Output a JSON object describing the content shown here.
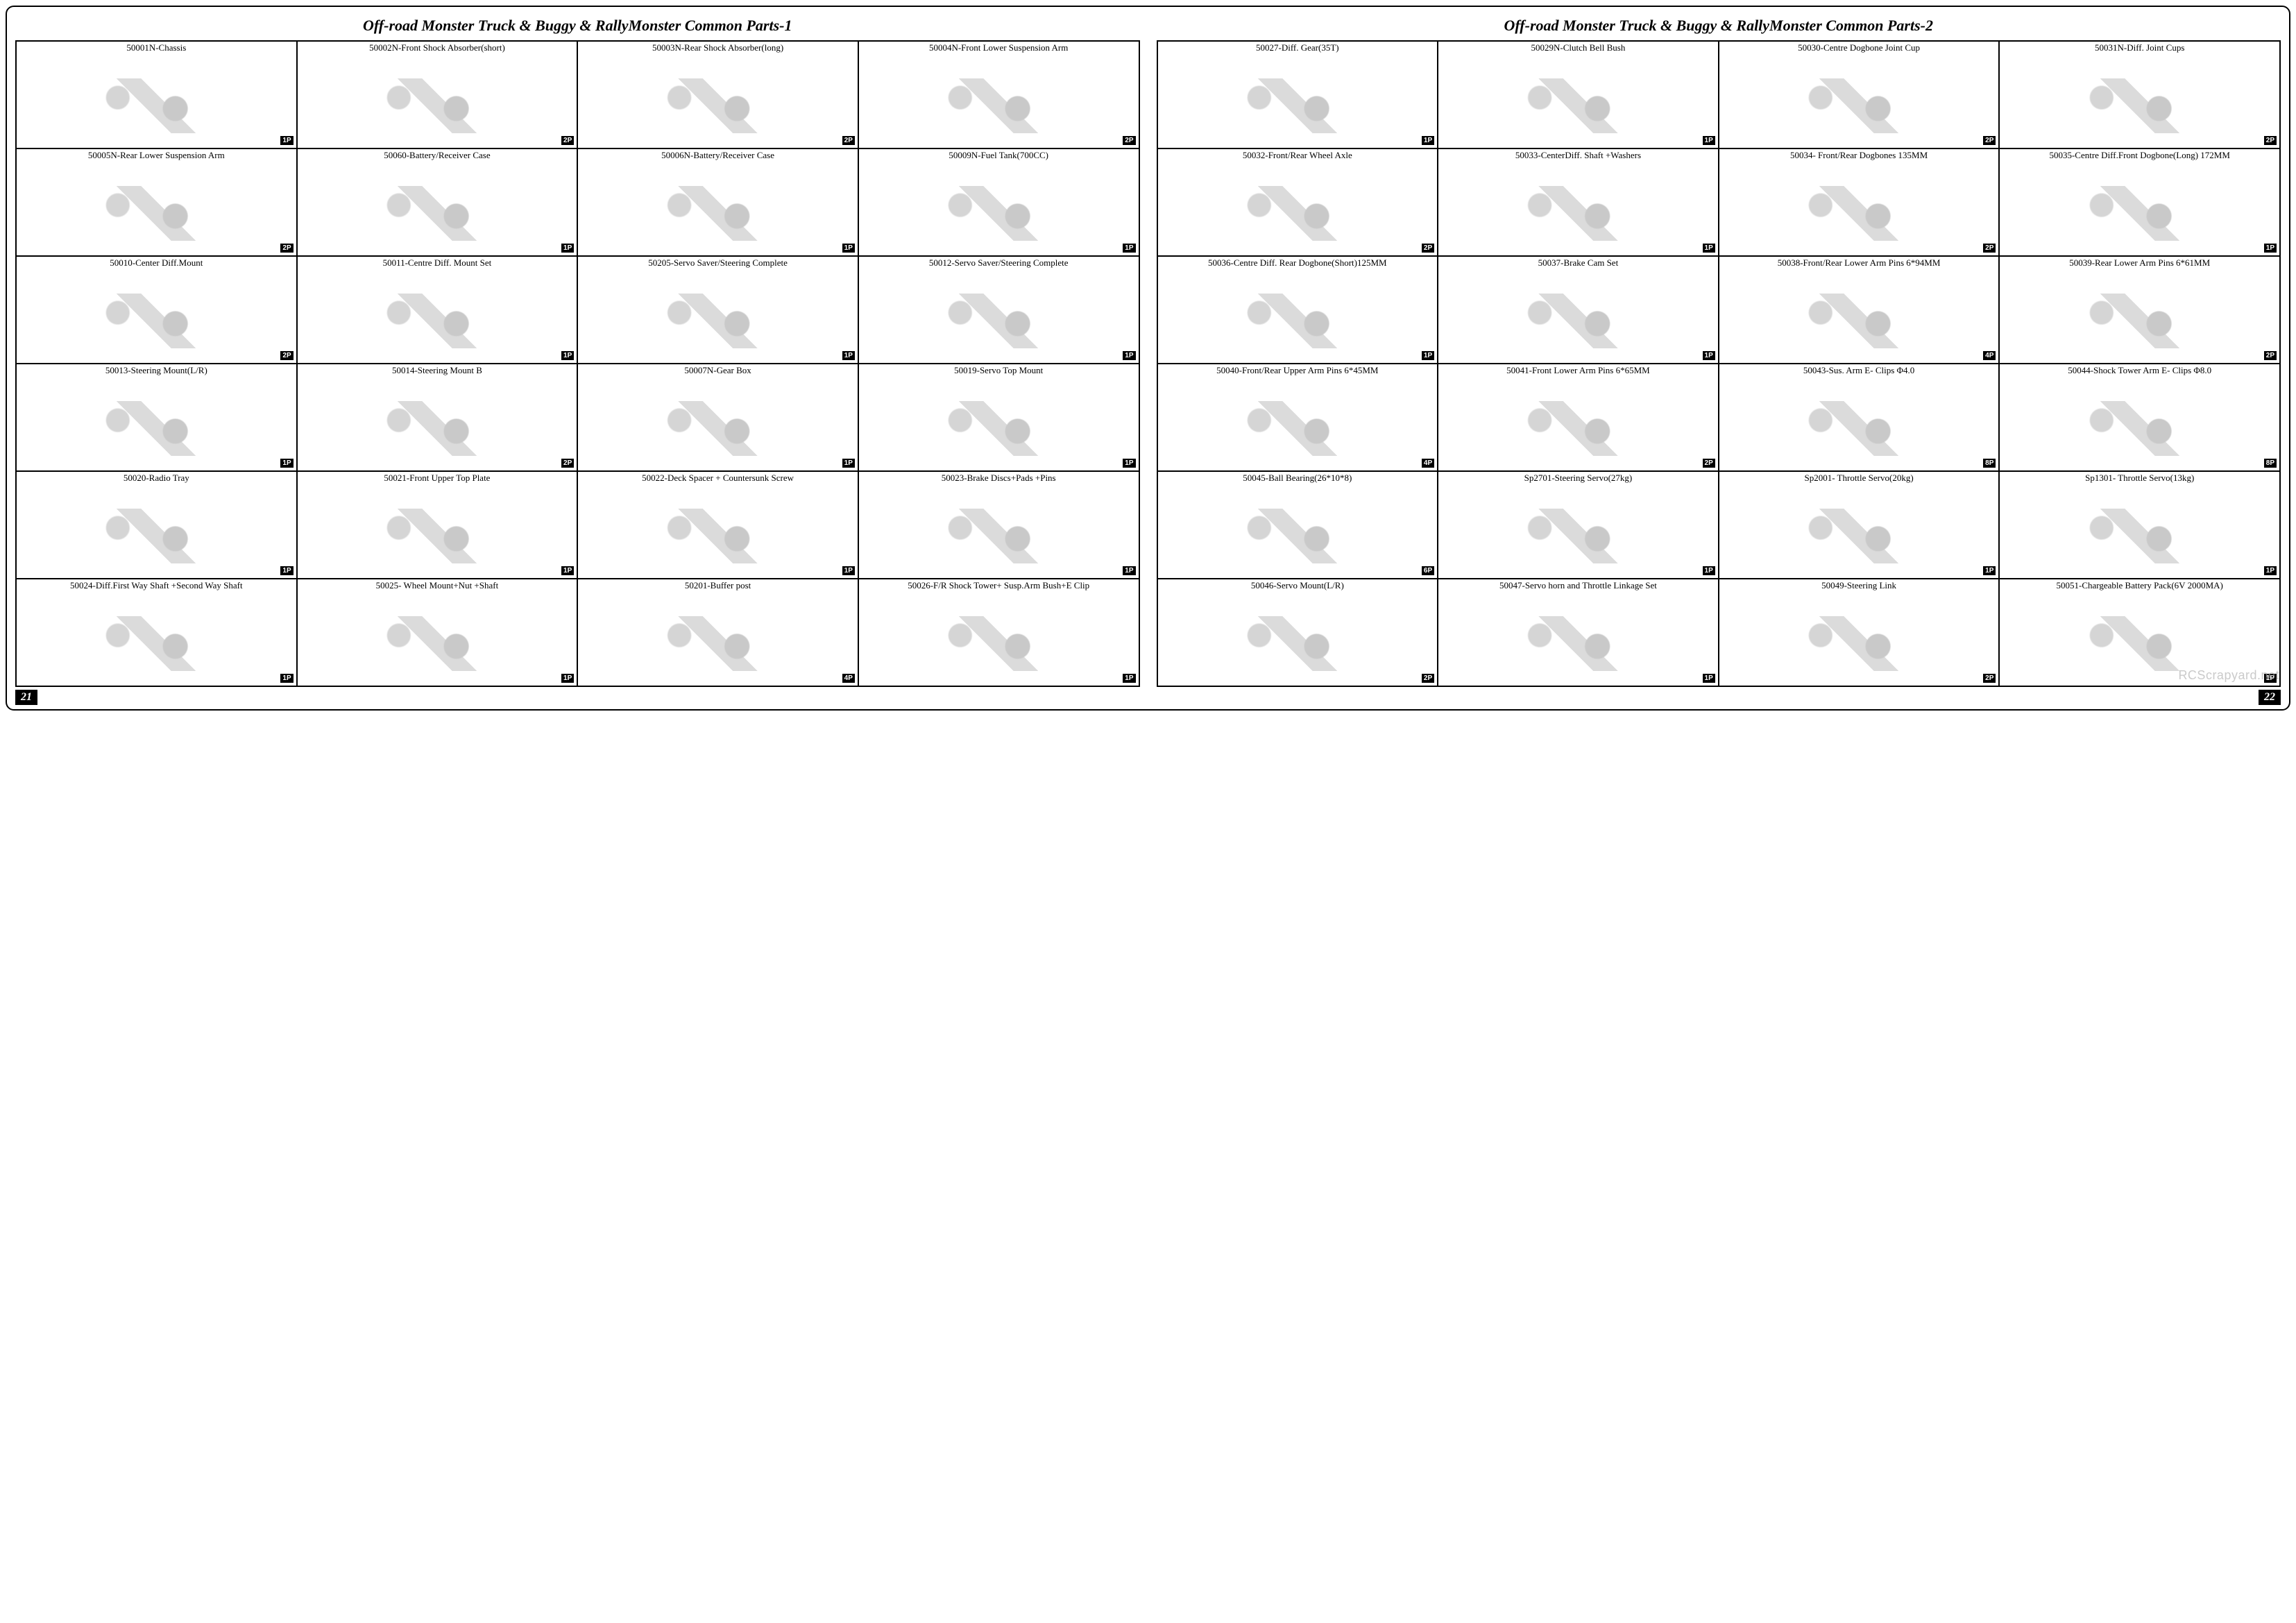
{
  "watermark": "RCScrapyard.net",
  "pages": [
    {
      "title": "Off-road Monster Truck & Buggy & RallyMonster Common Parts-1",
      "page_number": "21",
      "rows": [
        [
          {
            "label": "50001N-Chassis",
            "qty": "1P"
          },
          {
            "label": "50002N-Front Shock Absorber(short)",
            "qty": "2P"
          },
          {
            "label": "50003N-Rear Shock Absorber(long)",
            "qty": "2P"
          },
          {
            "label": "50004N-Front Lower Suspension Arm",
            "qty": "2P"
          }
        ],
        [
          {
            "label": "50005N-Rear Lower Suspension Arm",
            "qty": "2P"
          },
          {
            "label": "50060-Battery/Receiver Case",
            "qty": "1P"
          },
          {
            "label": "50006N-Battery/Receiver Case",
            "qty": "1P"
          },
          {
            "label": "50009N-Fuel Tank(700CC)",
            "qty": "1P"
          }
        ],
        [
          {
            "label": "50010-Center Diff.Mount",
            "qty": "2P"
          },
          {
            "label": "50011-Centre Diff. Mount Set",
            "qty": "1P"
          },
          {
            "label": "50205-Servo Saver/Steering Complete",
            "qty": "1P"
          },
          {
            "label": "50012-Servo Saver/Steering Complete",
            "qty": "1P"
          }
        ],
        [
          {
            "label": "50013-Steering Mount(L/R)",
            "qty": "1P"
          },
          {
            "label": "50014-Steering Mount B",
            "qty": "2P"
          },
          {
            "label": "50007N-Gear Box",
            "qty": "1P"
          },
          {
            "label": "50019-Servo Top Mount",
            "qty": "1P"
          }
        ],
        [
          {
            "label": "50020-Radio Tray",
            "qty": "1P"
          },
          {
            "label": "50021-Front Upper Top Plate",
            "qty": "1P"
          },
          {
            "label": "50022-Deck Spacer + Countersunk Screw",
            "qty": "1P"
          },
          {
            "label": "50023-Brake Discs+Pads +Pins",
            "qty": "1P"
          }
        ],
        [
          {
            "label": "50024-Diff.First Way Shaft +Second Way Shaft",
            "qty": "1P"
          },
          {
            "label": "50025- Wheel Mount+Nut +Shaft",
            "qty": "1P"
          },
          {
            "label": "50201-Buffer post",
            "qty": "4P"
          },
          {
            "label": "50026-F/R Shock Tower+ Susp.Arm Bush+E Clip",
            "qty": "1P"
          }
        ]
      ]
    },
    {
      "title": "Off-road Monster Truck & Buggy & RallyMonster Common Parts-2",
      "page_number": "22",
      "rows": [
        [
          {
            "label": "50027-Diff. Gear(35T)",
            "qty": "1P"
          },
          {
            "label": "50029N-Clutch Bell Bush",
            "qty": "1P"
          },
          {
            "label": "50030-Centre Dogbone Joint Cup",
            "qty": "2P"
          },
          {
            "label": "50031N-Diff. Joint Cups",
            "qty": "2P"
          }
        ],
        [
          {
            "label": "50032-Front/Rear Wheel Axle",
            "qty": "2P"
          },
          {
            "label": "50033-CenterDiff. Shaft +Washers",
            "qty": "1P"
          },
          {
            "label": "50034- Front/Rear Dogbones 135MM",
            "qty": "2P"
          },
          {
            "label": "50035-Centre Diff.Front Dogbone(Long) 172MM",
            "qty": "1P"
          }
        ],
        [
          {
            "label": "50036-Centre Diff. Rear Dogbone(Short)125MM",
            "qty": "1P"
          },
          {
            "label": "50037-Brake Cam Set",
            "qty": "1P"
          },
          {
            "label": "50038-Front/Rear Lower Arm Pins 6*94MM",
            "qty": "4P"
          },
          {
            "label": "50039-Rear Lower Arm Pins 6*61MM",
            "qty": "2P"
          }
        ],
        [
          {
            "label": "50040-Front/Rear Upper Arm Pins 6*45MM",
            "qty": "4P"
          },
          {
            "label": "50041-Front Lower Arm Pins 6*65MM",
            "qty": "2P"
          },
          {
            "label": "50043-Sus. Arm E- Clips Φ4.0",
            "qty": "8P"
          },
          {
            "label": "50044-Shock Tower Arm E- Clips Φ8.0",
            "qty": "8P"
          }
        ],
        [
          {
            "label": "50045-Ball Bearing(26*10*8)",
            "qty": "6P"
          },
          {
            "label": "Sp2701-Steering Servo(27kg)",
            "qty": "1P"
          },
          {
            "label": "Sp2001- Throttle Servo(20kg)",
            "qty": "1P"
          },
          {
            "label": "Sp1301- Throttle Servo(13kg)",
            "qty": "1P"
          }
        ],
        [
          {
            "label": "50046-Servo Mount(L/R)",
            "qty": "2P"
          },
          {
            "label": "50047-Servo horn and Throttle Linkage Set",
            "qty": "1P"
          },
          {
            "label": "50049-Steering Link",
            "qty": "2P"
          },
          {
            "label": "50051-Chargeable Battery Pack(6V 2000MA)",
            "qty": "1P"
          }
        ]
      ]
    }
  ]
}
